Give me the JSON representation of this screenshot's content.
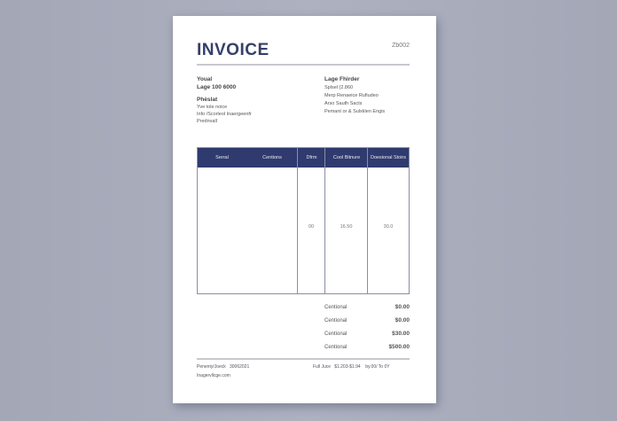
{
  "invoice": {
    "title": "INVOICE",
    "number": "Zb002",
    "from": {
      "name": "Youal",
      "line2": "Lage 100 6000",
      "section": "Phèslat",
      "lines": [
        "Yve tole noice",
        "Info /Scorleol Inaergeenfr",
        "Prednvall"
      ]
    },
    "to": {
      "name": "Lage Fhirder",
      "lines": [
        "Splsel (2.860",
        "Merp Renaeice Rufiudeo",
        "Arso Sauth Sacts",
        "Pemant or & Sulxklen Engis"
      ]
    },
    "table": {
      "headers": [
        "Serral",
        "Centions",
        "Dfrm",
        "Cool Bitnure",
        "Doesional Stoirs"
      ],
      "row": [
        "",
        "",
        "00",
        "16.50",
        "30.0"
      ]
    },
    "totals": [
      {
        "label": "Centional",
        "value": "$0.00"
      },
      {
        "label": "Centional",
        "value": "$0.00"
      },
      {
        "label": "Centional",
        "value": "$30.00"
      },
      {
        "label": "Centional",
        "value": "$500.00"
      }
    ],
    "footer": {
      "left1": "Penenty/Joeck",
      "date": "30062021",
      "left2": "Inagervllcge.com",
      "mid": "Full Juce",
      "mid_value": "$1.203-$1.94",
      "right": "by.00/  To 0Y"
    }
  },
  "colors": {
    "accent": "#2f3a6e",
    "background": "#a8acbb"
  }
}
